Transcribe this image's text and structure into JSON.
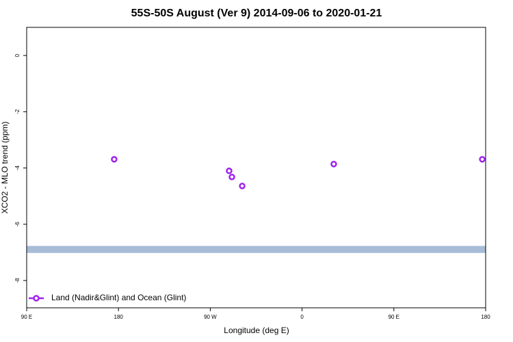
{
  "chart_data": {
    "type": "scatter",
    "title": "55S-50S August (Ver 9)   2014-09-06 to 2020-01-21",
    "x_label": "Longitude (deg E)",
    "y_label": "XCO2 - MLO trend (ppm)",
    "xlim": [
      90,
      540
    ],
    "xticks": [
      {
        "value": 90,
        "label": "90 E"
      },
      180,
      {
        "value": 270,
        "label": "90 W"
      },
      {
        "value": 360,
        "label": "0"
      },
      {
        "value": 450,
        "label": "90 E"
      },
      {
        "value": 540,
        "label": "180"
      }
    ],
    "ylim": [
      -8.97,
      1.0
    ],
    "yticks": [
      0,
      -2,
      -4,
      -6,
      -8
    ],
    "band": {
      "ymin": -7.02,
      "ymax": -6.77,
      "color": "#a8bcd8"
    },
    "series": [
      {
        "name": "Land (Nadir&Glint) and Ocean (Glint)",
        "color": "#a020f0",
        "x": [
          175.8,
          288.5,
          291.2,
          301.3,
          391.1,
          536.7
        ],
        "values": [
          -3.69,
          -4.1,
          -4.32,
          -4.64,
          -3.86,
          -3.69
        ]
      }
    ],
    "legend": "bottom-left"
  }
}
